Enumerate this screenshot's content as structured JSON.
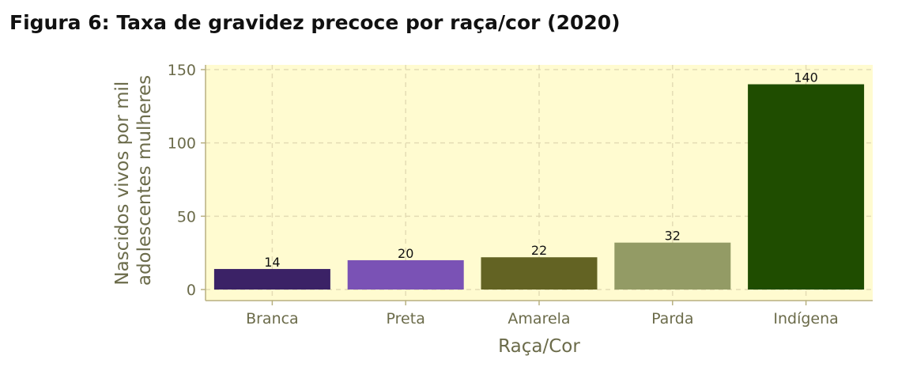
{
  "title": "Figura 6: Taxa de gravidez precoce por raça/cor (2020)",
  "chart_data": {
    "type": "bar",
    "categories": [
      "Branca",
      "Preta",
      "Amarela",
      "Parda",
      "Indígena"
    ],
    "values": [
      14,
      20,
      22,
      32,
      140
    ],
    "labels": [
      "14",
      "20",
      "22",
      "32",
      "140"
    ],
    "colors": [
      "#3b2266",
      "#7a52b5",
      "#636323",
      "#939b65",
      "#1f4d00"
    ],
    "xlabel": "Raça/Cor",
    "ylabel_lines": [
      "Nascidos vivos por mil",
      "adolescentes mulheres"
    ],
    "ylim": [
      0,
      150
    ],
    "yticks": [
      0,
      50,
      100,
      150
    ],
    "ytick_labels": [
      "0",
      "50",
      "100",
      "150"
    ],
    "grid": true,
    "panel_background": "#fffbd0",
    "grid_color": "#e4dcb4",
    "axis_color": "#b8b080"
  }
}
